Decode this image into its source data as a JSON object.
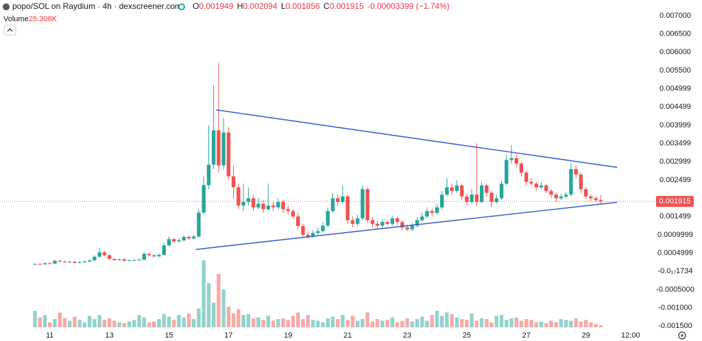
{
  "chart_data": {
    "type": "candlestick",
    "title": "popo/SOL on Raydium · 4h · dexscreener.com",
    "ohlc_legend": [
      {
        "label": "O",
        "value": 0.001949
      },
      {
        "label": "H",
        "value": 0.002094
      },
      {
        "label": "L",
        "value": 0.001856
      },
      {
        "label": "C",
        "value": 0.001915
      }
    ],
    "change": -3.399e-05,
    "change_pct": {
      "value": -1.74,
      "label": "(−1.74%)"
    },
    "volume_title": "Volume",
    "volume_current": {
      "value": 25.308,
      "label": "25.308K"
    },
    "last_price": 0.001915,
    "up_color": "#26a69a",
    "down_color": "#ef5350",
    "categories": [
      null,
      null,
      null,
      "11",
      null,
      null,
      null,
      null,
      null,
      null,
      null,
      null,
      null,
      null,
      null,
      "13",
      null,
      null,
      null,
      null,
      null,
      null,
      null,
      null,
      null,
      null,
      null,
      "15",
      null,
      null,
      null,
      null,
      null,
      null,
      null,
      null,
      null,
      null,
      null,
      "17",
      null,
      null,
      null,
      null,
      null,
      null,
      null,
      null,
      null,
      null,
      null,
      "19",
      null,
      null,
      null,
      null,
      null,
      null,
      null,
      null,
      null,
      null,
      null,
      "21",
      null,
      null,
      null,
      null,
      null,
      null,
      null,
      null,
      null,
      null,
      null,
      "23",
      null,
      null,
      null,
      null,
      null,
      null,
      null,
      null,
      null,
      null,
      null,
      "25",
      null,
      null,
      null,
      null,
      null,
      null,
      null,
      null,
      null,
      null,
      null,
      "27",
      null,
      null,
      null,
      null,
      null,
      null,
      null,
      null,
      null,
      null,
      null,
      "29",
      null,
      null,
      null,
      null,
      null,
      null,
      null,
      null,
      "12:00",
      null,
      null,
      null
    ],
    "open": [
      0.00019,
      0.0002,
      0.00019,
      0.00022,
      0.00021,
      0.00029,
      0.00027,
      0.00025,
      0.00026,
      0.00023,
      0.00025,
      0.00027,
      0.0003,
      0.0004,
      0.00052,
      0.00044,
      0.00034,
      0.00031,
      0.00033,
      0.00029,
      0.0003,
      0.00031,
      0.00032,
      0.00048,
      0.00044,
      0.00041,
      0.00045,
      0.00071,
      0.00088,
      0.00082,
      0.00085,
      0.00094,
      0.0009,
      0.00095,
      0.00161,
      0.00236,
      0.00292,
      0.00386,
      0.0029,
      0.0038,
      0.0026,
      0.0023,
      0.0018,
      0.0019,
      0.002,
      0.00175,
      0.00185,
      0.0017,
      0.0018,
      0.00175,
      0.0019,
      0.0017,
      0.00165,
      0.0015,
      0.00124,
      0.001,
      0.00095,
      0.00105,
      0.0011,
      0.00125,
      0.00165,
      0.002,
      0.0019,
      0.00205,
      0.0014,
      0.0013,
      0.00145,
      0.00225,
      0.0014,
      0.0013,
      0.00125,
      0.00135,
      0.0013,
      0.00145,
      0.00135,
      0.0012,
      0.00115,
      0.00125,
      0.0014,
      0.0015,
      0.00165,
      0.0016,
      0.00175,
      0.0021,
      0.0023,
      0.0022,
      0.00235,
      0.00205,
      0.0019,
      0.0021,
      0.0019,
      0.00235,
      0.00215,
      0.0019,
      0.002,
      0.0024,
      0.00305,
      0.0031,
      0.00295,
      0.0027,
      0.00245,
      0.0024,
      0.0023,
      0.00235,
      0.0022,
      0.0021,
      0.002,
      0.00205,
      0.0021,
      0.0028,
      0.00265,
      0.00225,
      0.00205,
      0.002,
      0.001949,
      null,
      null,
      null,
      null,
      null,
      null,
      null,
      null,
      null
    ],
    "high": [
      0.00022,
      0.00022,
      0.00024,
      0.00024,
      0.00031,
      0.00031,
      0.00029,
      0.00028,
      0.00028,
      0.00027,
      0.00029,
      0.00033,
      0.00044,
      0.00064,
      0.00055,
      0.00046,
      0.00036,
      0.00035,
      0.00035,
      0.00032,
      0.00033,
      0.00034,
      0.00052,
      0.0005,
      0.00046,
      0.00049,
      0.00078,
      0.00096,
      0.00092,
      0.0009,
      0.00099,
      0.00098,
      0.001,
      0.0017,
      0.0026,
      0.004,
      0.0051,
      0.0057,
      0.0042,
      0.00395,
      0.0029,
      0.0024,
      0.0024,
      0.0023,
      0.0021,
      0.002,
      0.00195,
      0.0024,
      0.0019,
      0.002,
      0.00195,
      0.0018,
      0.0017,
      0.0016,
      0.0013,
      0.00108,
      0.00112,
      0.0012,
      0.00135,
      0.00175,
      0.00215,
      0.0021,
      0.00235,
      0.0021,
      0.0015,
      0.00155,
      0.00235,
      0.0023,
      0.00148,
      0.00138,
      0.00142,
      0.0014,
      0.00152,
      0.0015,
      0.0014,
      0.00128,
      0.00132,
      0.00148,
      0.0016,
      0.00175,
      0.00172,
      0.00185,
      0.0022,
      0.00255,
      0.0024,
      0.0025,
      0.0024,
      0.00212,
      0.00225,
      0.0035,
      0.00245,
      0.0024,
      0.0022,
      0.0021,
      0.0025,
      0.0032,
      0.00345,
      0.0032,
      0.003,
      0.00275,
      0.00255,
      0.00245,
      0.00245,
      0.0024,
      0.00225,
      0.00215,
      0.00212,
      0.00218,
      0.00295,
      0.0029,
      0.0027,
      0.0023,
      0.0021,
      0.00206,
      0.002094,
      null,
      null,
      null,
      null,
      null,
      null,
      null,
      null,
      null
    ],
    "low": [
      0.00017,
      0.00017,
      0.00018,
      0.00019,
      0.0002,
      0.00025,
      0.00023,
      0.00023,
      0.00021,
      0.00021,
      0.00023,
      0.00025,
      0.00029,
      0.00038,
      0.00041,
      0.00032,
      0.00029,
      0.00029,
      0.00027,
      0.00027,
      0.00028,
      0.00029,
      0.0003,
      0.00041,
      0.00039,
      0.00039,
      0.00043,
      0.00069,
      0.00078,
      0.00079,
      0.00082,
      0.00086,
      0.00087,
      0.00092,
      0.00155,
      0.00225,
      0.0028,
      0.0027,
      0.0028,
      0.0025,
      0.002,
      0.0017,
      0.00165,
      0.0018,
      0.00165,
      0.0017,
      0.0016,
      0.00165,
      0.00165,
      0.0017,
      0.0016,
      0.00155,
      0.00145,
      0.00115,
      0.00095,
      0.0009,
      0.00092,
      0.001,
      0.00105,
      0.0012,
      0.0016,
      0.0018,
      0.00185,
      0.0013,
      0.0012,
      0.00125,
      0.0014,
      0.00132,
      0.0012,
      0.00118,
      0.0012,
      0.00125,
      0.00125,
      0.00128,
      0.00112,
      0.0011,
      0.0011,
      0.0012,
      0.00135,
      0.00145,
      0.0015,
      0.00155,
      0.0017,
      0.00205,
      0.0021,
      0.00215,
      0.00195,
      0.0018,
      0.00185,
      0.0018,
      0.00185,
      0.00205,
      0.00175,
      0.00185,
      0.00195,
      0.00235,
      0.00295,
      0.00285,
      0.0026,
      0.00235,
      0.00235,
      0.0022,
      0.00225,
      0.00215,
      0.002,
      0.0019,
      0.00195,
      0.002,
      0.00205,
      0.00255,
      0.00215,
      0.00198,
      0.00192,
      0.0019,
      0.001856,
      null,
      null,
      null,
      null,
      null,
      null,
      null,
      null,
      null
    ],
    "close": [
      0.0002,
      0.00019,
      0.00022,
      0.00021,
      0.00029,
      0.00027,
      0.00025,
      0.00026,
      0.00023,
      0.00025,
      0.00027,
      0.0003,
      0.0004,
      0.00052,
      0.00044,
      0.00034,
      0.00031,
      0.00033,
      0.00029,
      0.0003,
      0.00031,
      0.00032,
      0.00048,
      0.00044,
      0.00041,
      0.00045,
      0.00071,
      0.00088,
      0.00082,
      0.00085,
      0.00094,
      0.0009,
      0.00095,
      0.00161,
      0.00236,
      0.00292,
      0.00386,
      0.0029,
      0.0038,
      0.0026,
      0.0023,
      0.0018,
      0.0019,
      0.002,
      0.00175,
      0.00185,
      0.0017,
      0.0018,
      0.00175,
      0.0019,
      0.0017,
      0.00165,
      0.0015,
      0.00124,
      0.001,
      0.00095,
      0.00105,
      0.0011,
      0.00125,
      0.00165,
      0.002,
      0.0019,
      0.00205,
      0.0014,
      0.0013,
      0.00145,
      0.00225,
      0.0014,
      0.0013,
      0.00125,
      0.00135,
      0.0013,
      0.00145,
      0.00135,
      0.0012,
      0.00115,
      0.00125,
      0.0014,
      0.0015,
      0.00165,
      0.0016,
      0.00175,
      0.0021,
      0.0023,
      0.0022,
      0.00235,
      0.00205,
      0.0019,
      0.0021,
      0.0019,
      0.00235,
      0.00215,
      0.0019,
      0.002,
      0.0024,
      0.00305,
      0.0031,
      0.00295,
      0.0027,
      0.00245,
      0.0024,
      0.0023,
      0.00235,
      0.0022,
      0.0021,
      0.002,
      0.00205,
      0.0021,
      0.0028,
      0.00265,
      0.00225,
      0.00205,
      0.002,
      0.001949,
      0.001915,
      null,
      null,
      null,
      null,
      null,
      null,
      null,
      null,
      null
    ],
    "volume": [
      200,
      120,
      150,
      60,
      100,
      180,
      110,
      80,
      130,
      90,
      60,
      140,
      100,
      150,
      90,
      110,
      80,
      60,
      50,
      70,
      90,
      150,
      120,
      60,
      70,
      100,
      160,
      130,
      90,
      150,
      120,
      170,
      100,
      230,
      817,
      540,
      300,
      650,
      460,
      250,
      170,
      220,
      150,
      160,
      110,
      120,
      90,
      140,
      80,
      100,
      110,
      90,
      140,
      180,
      100,
      150,
      90,
      80,
      60,
      110,
      130,
      100,
      150,
      90,
      140,
      80,
      100,
      180,
      70,
      100,
      80,
      90,
      120,
      60,
      80,
      110,
      70,
      100,
      130,
      80,
      150,
      200,
      140,
      180,
      160,
      120,
      100,
      90,
      170,
      80,
      110,
      100,
      60,
      140,
      150,
      90,
      110,
      120,
      80,
      100,
      90,
      60,
      70,
      50,
      80,
      60,
      100,
      90,
      80,
      110,
      70,
      90,
      60,
      40,
      25.308,
      null,
      null,
      null,
      null,
      null,
      null,
      null,
      null,
      null
    ],
    "ylim": [
      -0.00159,
      0.00743
    ],
    "yticks": [
      {
        "value": 0.007,
        "label": "0.007000"
      },
      {
        "value": 0.0065,
        "label": "0.006500"
      },
      {
        "value": 0.006,
        "label": "0.006000"
      },
      {
        "value": 0.0055,
        "label": "0.005500"
      },
      {
        "value": 0.005,
        "label": "0.004999"
      },
      {
        "value": 0.0045,
        "label": "0.004499"
      },
      {
        "value": 0.004,
        "label": "0.003999"
      },
      {
        "value": 0.0035,
        "label": "0.003499"
      },
      {
        "value": 0.003,
        "label": "0.002999"
      },
      {
        "value": 0.0025,
        "label": "0.002499"
      },
      {
        "value": 0.0015,
        "label": "0.001499"
      },
      {
        "value": 0.001,
        "label": "0.0009999"
      },
      {
        "value": 0.0005,
        "label": "0.0004999"
      },
      {
        "value": 0,
        "label": "-0.0₁₇1734"
      },
      {
        "value": -0.0005,
        "label": "-0.0005000"
      },
      {
        "value": -0.001,
        "label": "-0.001000"
      },
      {
        "value": -0.0015,
        "label": "-0.001500"
      }
    ],
    "trendlines": [
      {
        "color": "#3b64c9",
        "points": [
          [
            36.5,
            0.00442
          ],
          [
            117.3,
            0.002846
          ]
        ]
      },
      {
        "color": "#3b64c9",
        "points": [
          [
            32.4,
            0.000599
          ],
          [
            117.3,
            0.001891
          ]
        ]
      }
    ]
  }
}
